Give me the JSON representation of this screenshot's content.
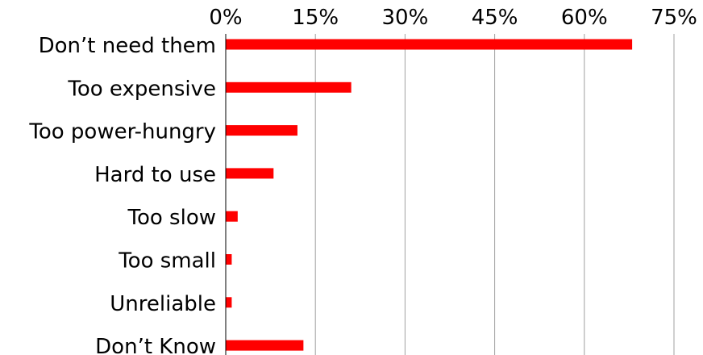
{
  "chart_data": {
    "type": "bar",
    "orientation": "horizontal",
    "categories": [
      "Don’t need them",
      "Too expensive",
      "Too power-hungry",
      "Hard to use",
      "Too slow",
      "Too small",
      "Unreliable",
      "Don’t Know"
    ],
    "values": [
      68,
      21,
      12,
      8,
      2,
      1,
      1,
      13
    ],
    "value_unit": "%",
    "x_ticks": [
      "0%",
      "15%",
      "30%",
      "45%",
      "60%",
      "75%"
    ],
    "x_tick_values": [
      0,
      15,
      30,
      45,
      60,
      75
    ],
    "xlim": [
      0,
      75
    ],
    "x_axis_position": "top",
    "grid": true,
    "legend": "none",
    "bar_color": "#ff0000",
    "grid_color": "#a0a0a0",
    "axis_color": "#000000"
  }
}
